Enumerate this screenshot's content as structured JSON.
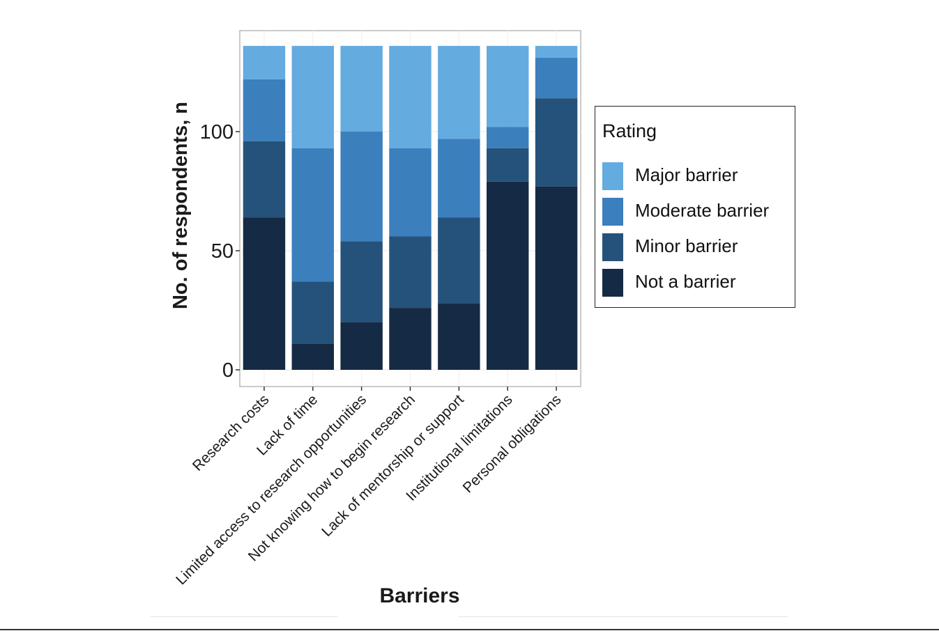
{
  "chart_data": {
    "type": "bar",
    "stacked": true,
    "categories": [
      "Research costs",
      "Lack of time",
      "Limited access to research opportunities",
      "Not knowing how to begin research",
      "Lack of mentorship or support",
      "Institutional limitations",
      "Personal obligations"
    ],
    "series": [
      {
        "name": "Not a barrier",
        "color": "#152a44",
        "values": [
          64,
          11,
          20,
          26,
          28,
          79,
          77
        ]
      },
      {
        "name": "Minor barrier",
        "color": "#25527a",
        "values": [
          32,
          26,
          34,
          30,
          36,
          14,
          37
        ]
      },
      {
        "name": "Moderate barrier",
        "color": "#3b7fbd",
        "values": [
          26,
          56,
          46,
          37,
          33,
          9,
          17
        ]
      },
      {
        "name": "Major barrier",
        "color": "#64abe0",
        "values": [
          14,
          43,
          36,
          43,
          39,
          34,
          5
        ]
      }
    ],
    "xlabel": "Barriers",
    "ylabel": "No. of respondents, n",
    "ylim": [
      0,
      143
    ],
    "yticks": [
      0,
      50,
      100
    ],
    "grid": true,
    "legend": {
      "title": "Rating",
      "placement": "right",
      "order": [
        "Major barrier",
        "Moderate barrier",
        "Minor barrier",
        "Not a barrier"
      ]
    }
  }
}
